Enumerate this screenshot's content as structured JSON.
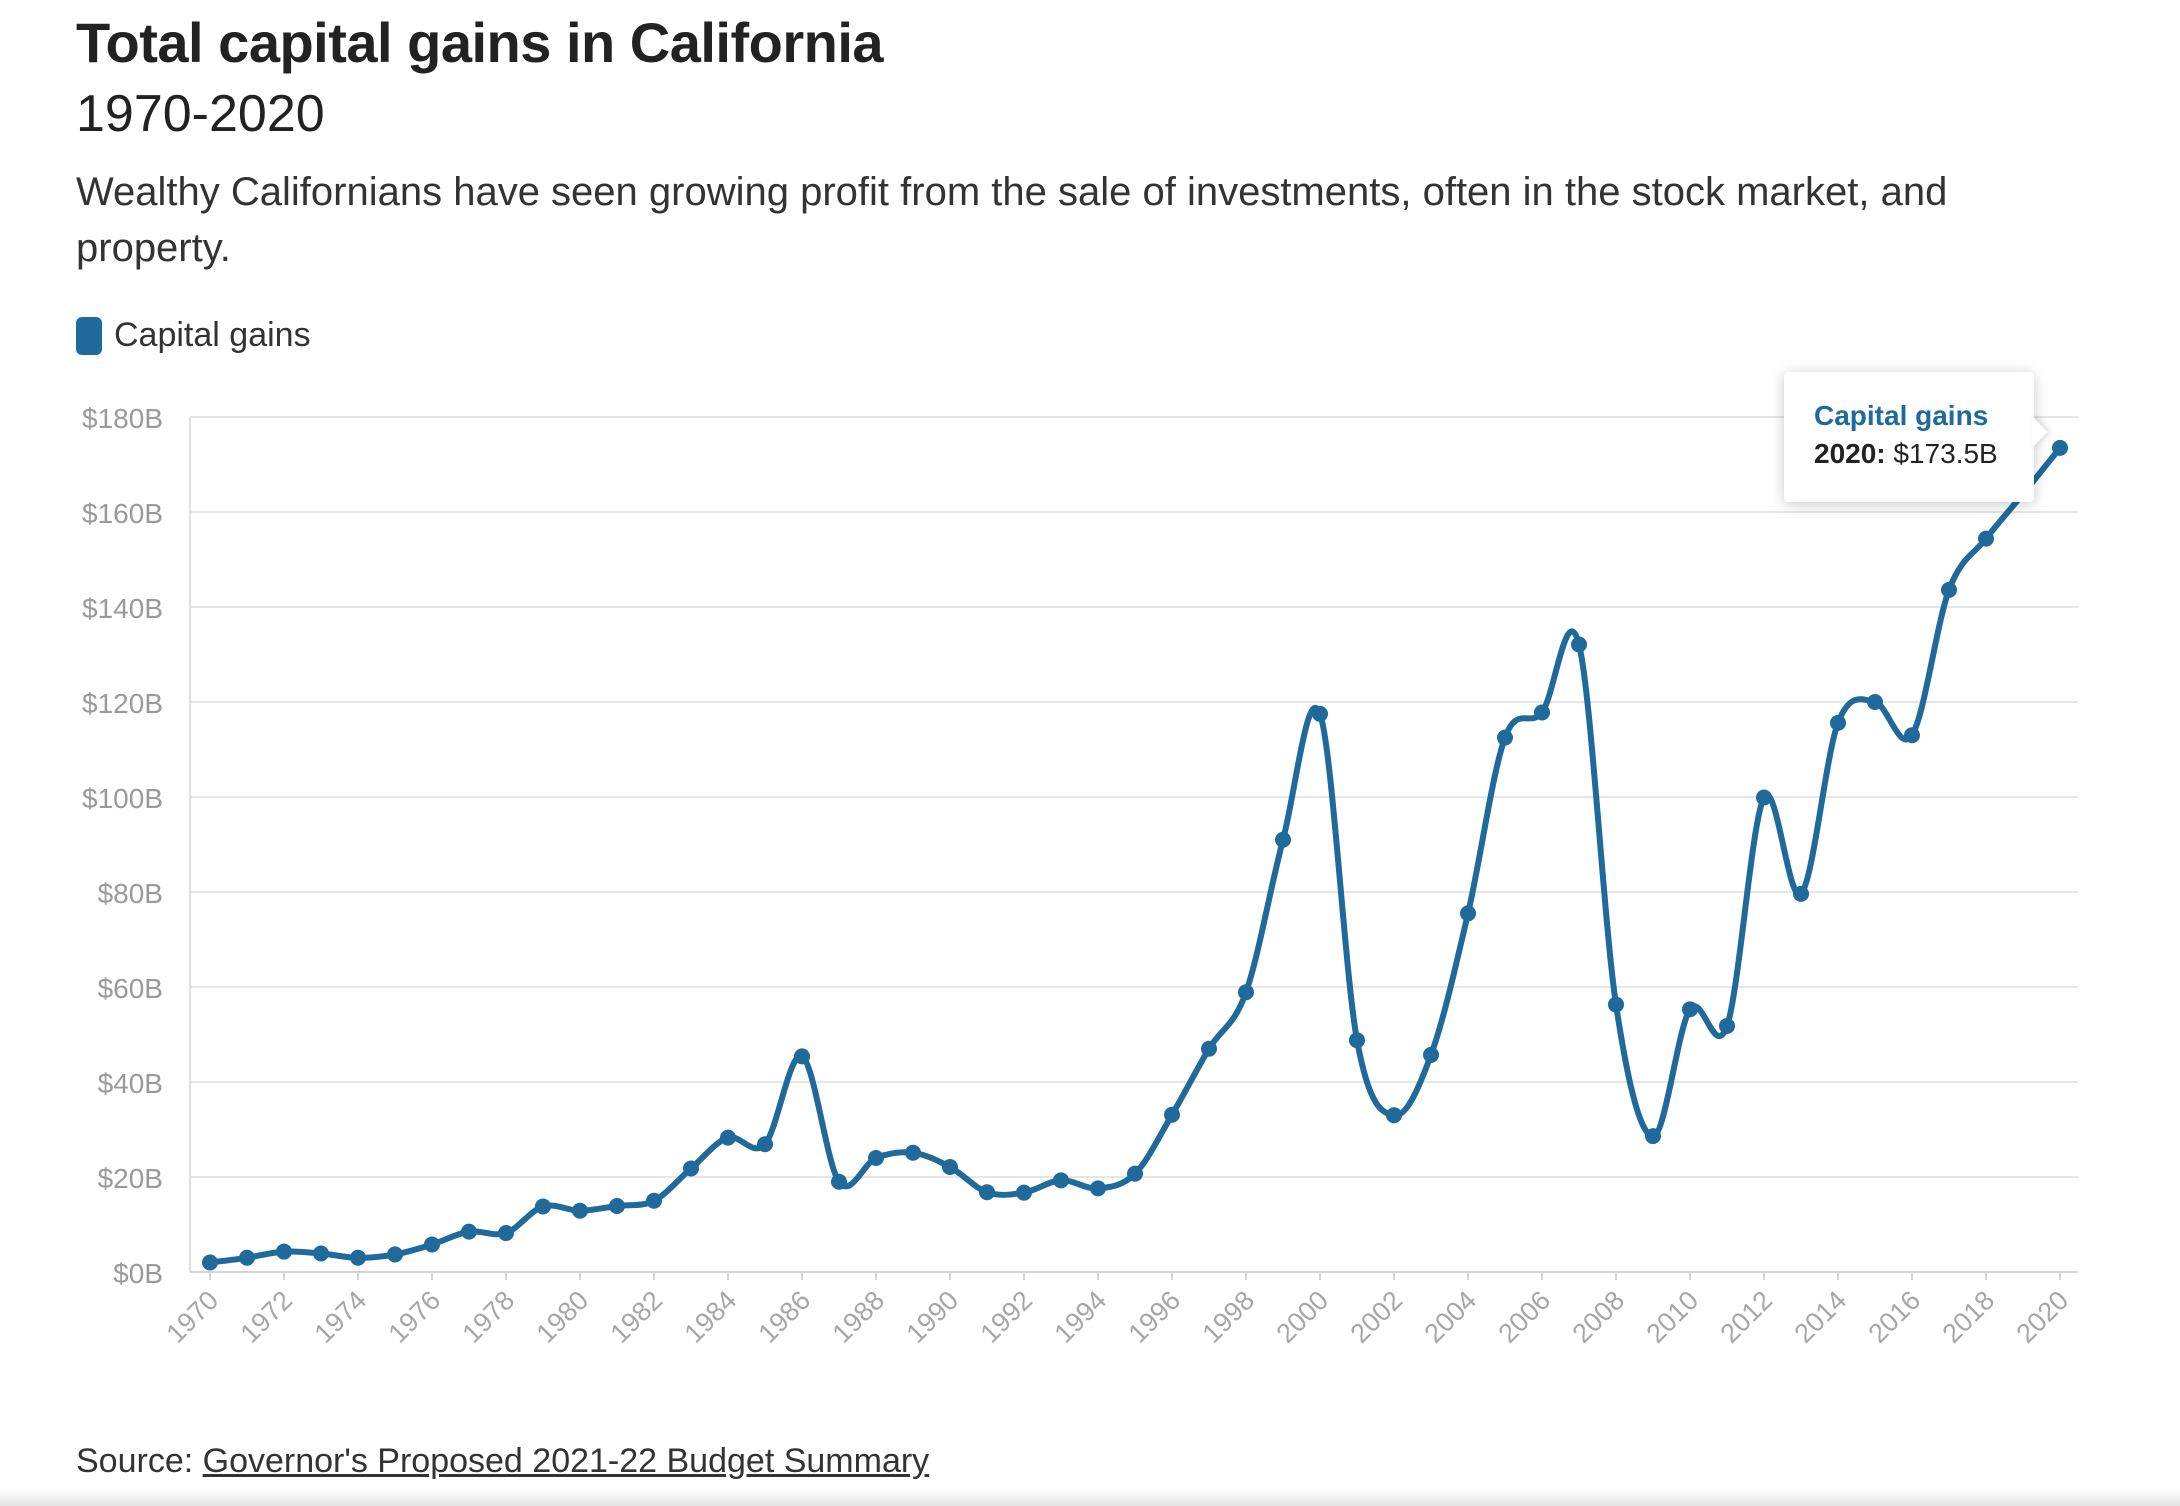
{
  "header": {
    "title": "Total capital gains in California",
    "subtitle": "1970-2020",
    "description": "Wealthy Californians have seen growing profit from the sale of investments, often in the stock market, and property."
  },
  "legend": {
    "label": "Capital gains",
    "color": "#1f6a9a"
  },
  "tooltip": {
    "series": "Capital gains",
    "year_label": "2020:",
    "value_label": "$173.5B"
  },
  "source": {
    "prefix": "Source: ",
    "link_text": "Governor's Proposed 2021-22 Budget Summary"
  },
  "chart_data": {
    "type": "line",
    "title": "Total capital gains in California",
    "subtitle": "1970-2020",
    "xlabel": "",
    "ylabel": "",
    "ylim": [
      0,
      180
    ],
    "y_ticks": [
      0,
      20,
      40,
      60,
      80,
      100,
      120,
      140,
      160,
      180
    ],
    "y_tick_labels": [
      "$0B",
      "$20B",
      "$40B",
      "$60B",
      "$80B",
      "$100B",
      "$120B",
      "$140B",
      "$160B",
      "$180B"
    ],
    "x_tick_labels": [
      "1970",
      "1972",
      "1974",
      "1976",
      "1978",
      "1980",
      "1982",
      "1984",
      "1986",
      "1988",
      "1990",
      "1992",
      "1994",
      "1996",
      "1998",
      "2000",
      "2002",
      "2004",
      "2006",
      "2008",
      "2010",
      "2012",
      "2014",
      "2016",
      "2018",
      "2020"
    ],
    "grid": true,
    "legend_position": "top-left",
    "x": [
      1970,
      1971,
      1972,
      1973,
      1974,
      1975,
      1976,
      1977,
      1978,
      1979,
      1980,
      1981,
      1982,
      1983,
      1984,
      1985,
      1986,
      1987,
      1988,
      1989,
      1990,
      1991,
      1992,
      1993,
      1994,
      1995,
      1996,
      1997,
      1998,
      1999,
      2000,
      2001,
      2002,
      2003,
      2004,
      2005,
      2006,
      2007,
      2008,
      2009,
      2010,
      2011,
      2012,
      2013,
      2014,
      2015,
      2016,
      2017,
      2018,
      2019,
      2020
    ],
    "series": [
      {
        "name": "Capital gains",
        "color": "#1f6a9a",
        "values": [
          2.0,
          3.0,
          4.3,
          3.9,
          3.0,
          3.7,
          5.8,
          8.5,
          8.2,
          13.8,
          12.9,
          13.9,
          15.0,
          21.8,
          28.3,
          26.9,
          45.4,
          19.0,
          24.0,
          25.1,
          22.1,
          16.8,
          16.7,
          19.3,
          17.6,
          20.7,
          33.1,
          47.0,
          58.9,
          91.0,
          117.5,
          48.8,
          33.0,
          45.7,
          75.5,
          112.5,
          117.8,
          132.1,
          56.3,
          28.6,
          55.3,
          51.8,
          99.9,
          79.6,
          115.6,
          120.0,
          113.0,
          143.6,
          154.4,
          163.8,
          173.5
        ]
      }
    ]
  }
}
